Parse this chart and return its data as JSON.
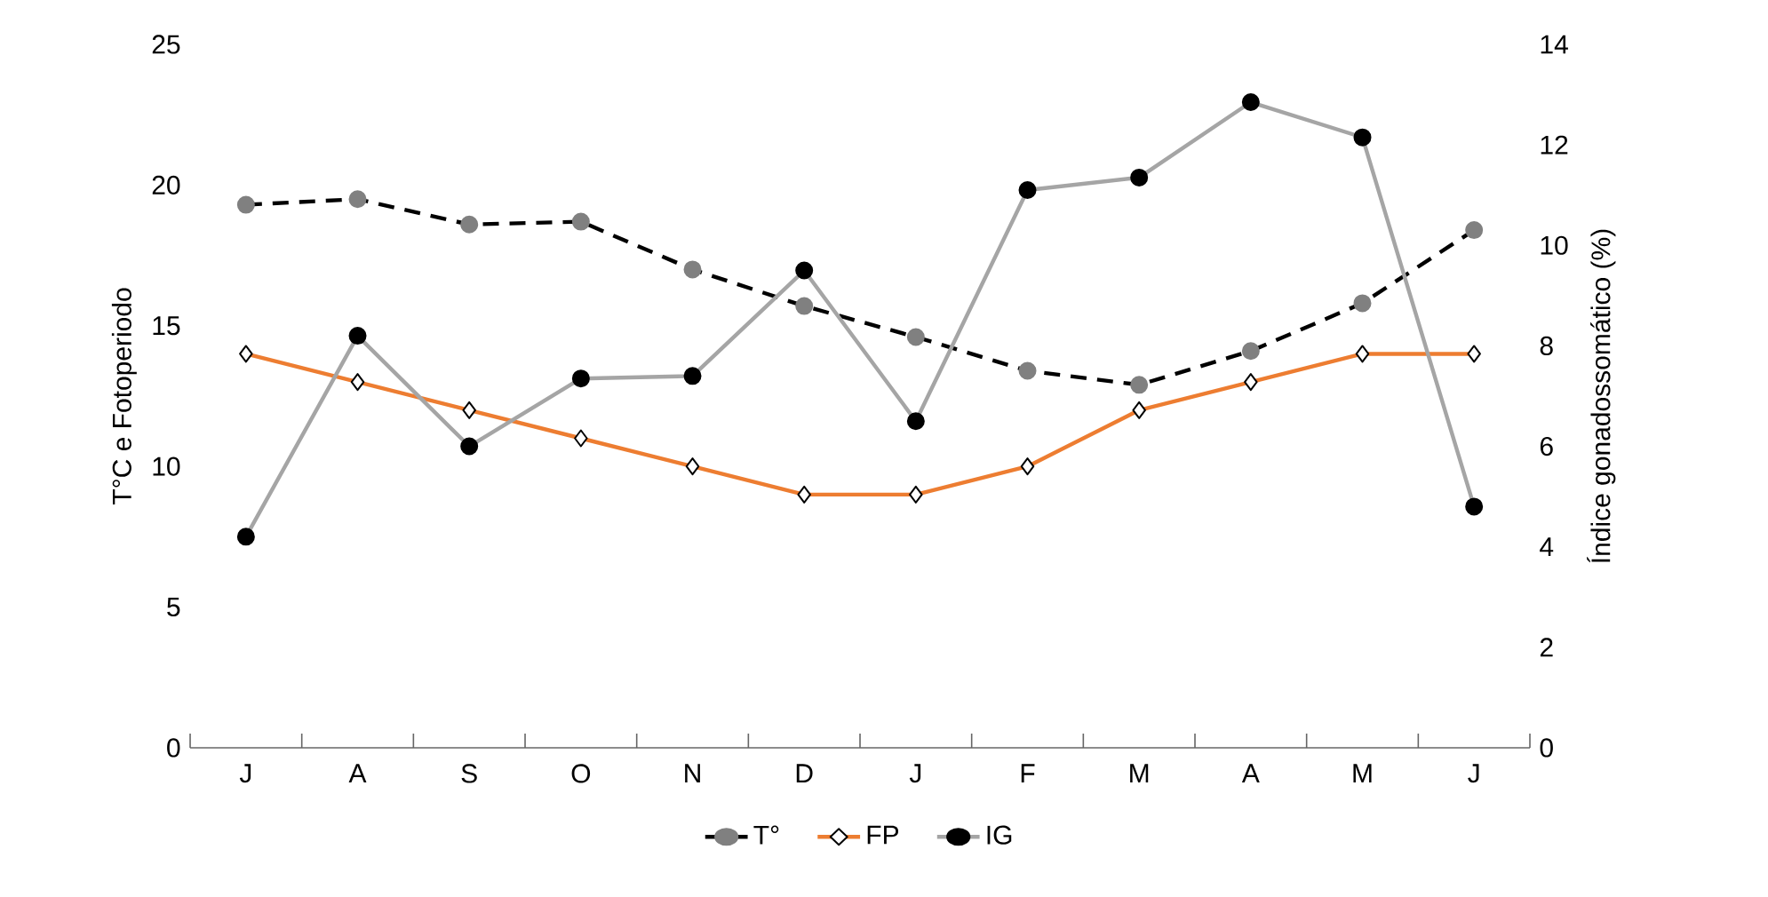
{
  "chart_data": {
    "type": "line",
    "ylabel": "T°C e Fotoperiodo",
    "y2label": "Índice gonadossomático (%)",
    "categories": [
      "J",
      "A",
      "S",
      "O",
      "N",
      "D",
      "J",
      "F",
      "M",
      "A",
      "M",
      "J"
    ],
    "ylim": [
      0,
      25
    ],
    "yticks": [
      0,
      5,
      10,
      15,
      20,
      25
    ],
    "y2lim": [
      0,
      14
    ],
    "y2ticks": [
      0,
      2,
      4,
      6,
      8,
      10,
      12,
      14
    ],
    "legend": "bottom",
    "grid": false,
    "series": [
      {
        "name": "T°",
        "color": "#808080",
        "axis": "y",
        "line_style": "dashed",
        "marker": "circle",
        "values": [
          19.3,
          19.5,
          18.6,
          18.7,
          17.0,
          15.7,
          14.6,
          13.4,
          12.9,
          14.1,
          15.8,
          18.4
        ]
      },
      {
        "name": "FP",
        "color": "#ed7d31",
        "axis": "y",
        "line_style": "solid",
        "marker": "diamond",
        "values": [
          14,
          13,
          12,
          11,
          10,
          9,
          9,
          10,
          12,
          13,
          14,
          14
        ]
      },
      {
        "name": "IG",
        "color": "#a5a5a5",
        "axis": "y2",
        "line_style": "solid",
        "marker": "circle",
        "values": [
          4.2,
          8.2,
          6.0,
          7.35,
          7.4,
          9.5,
          6.5,
          11.1,
          11.35,
          12.85,
          12.15,
          4.8
        ]
      }
    ]
  }
}
